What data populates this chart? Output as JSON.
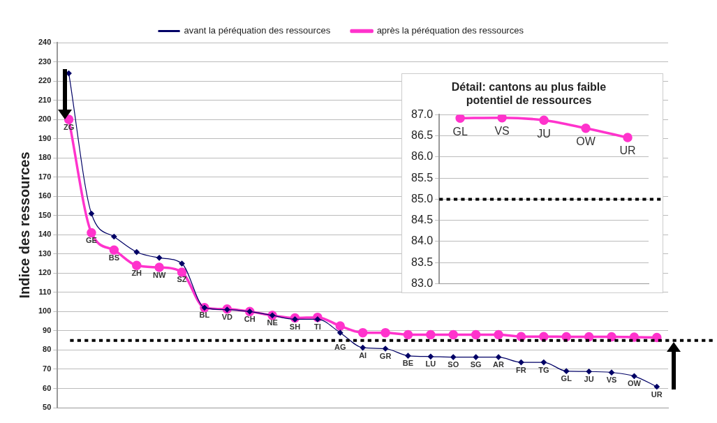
{
  "chart_data": [
    {
      "type": "line",
      "ylabel": "Indice des ressources",
      "categories": [
        "ZG",
        "GE",
        "BS",
        "ZH",
        "NW",
        "SZ",
        "BL",
        "VD",
        "CH",
        "NE",
        "SH",
        "TI",
        "AG",
        "AI",
        "GR",
        "BE",
        "LU",
        "SO",
        "SG",
        "AR",
        "FR",
        "TG",
        "GL",
        "JU",
        "VS",
        "OW",
        "UR"
      ],
      "series": [
        {
          "name": "avant la péréquation des ressources",
          "color": "#000066",
          "marker": "diamond",
          "values": [
            224,
            151,
            139,
            131,
            128,
            125,
            102,
            101,
            100,
            98,
            96,
            96,
            89,
            81.2,
            80.7,
            77,
            76.6,
            76.3,
            76.3,
            76.3,
            73.6,
            73.6,
            69,
            68.8,
            68.3,
            66.4,
            60.9
          ]
        },
        {
          "name": "après la péréquation des ressources",
          "color": "#ff33cc",
          "marker": "circle",
          "values": [
            200,
            141,
            132,
            124,
            123,
            120.5,
            102,
            101.3,
            100,
            98,
            96.7,
            97,
            92.5,
            89,
            89,
            88,
            88,
            88,
            88,
            88,
            87,
            87,
            86.9,
            86.9,
            86.9,
            86.7,
            86.5
          ]
        }
      ],
      "ylim": [
        50,
        240
      ],
      "yticks": [
        50,
        60,
        70,
        80,
        90,
        100,
        110,
        120,
        130,
        140,
        150,
        160,
        170,
        180,
        190,
        200,
        210,
        220,
        230,
        240
      ],
      "grid": "y",
      "legend": "top",
      "ref_lines": [
        {
          "axis": "y",
          "value": 85,
          "color": "#000000",
          "line_style": "dotted"
        }
      ]
    },
    {
      "type": "line",
      "title": "Détail: cantons au plus faible potentiel de ressources",
      "categories": [
        "GL",
        "VS",
        "JU",
        "OW",
        "UR"
      ],
      "series": [
        {
          "color": "#ff33cc",
          "marker": "circle",
          "values": [
            86.92,
            86.93,
            86.87,
            86.68,
            86.46
          ]
        }
      ],
      "ylim": [
        83,
        87
      ],
      "yticks": [
        {
          "value": 83,
          "label": "83.0"
        },
        {
          "value": 83.5,
          "label": "83.5"
        },
        {
          "value": 84,
          "label": "84.0"
        },
        {
          "value": 84.5,
          "label": "84.5"
        },
        {
          "value": 85,
          "label": "85.0"
        },
        {
          "value": 85.5,
          "label": "85.5"
        },
        {
          "value": 86,
          "label": "86.0"
        },
        {
          "value": 86.5,
          "label": "86.5"
        },
        {
          "value": 87,
          "label": "87.0"
        }
      ],
      "grid": "y",
      "ref_lines": [
        {
          "axis": "y",
          "value": 85,
          "color": "#000000",
          "line_style": "dotted"
        }
      ]
    }
  ]
}
